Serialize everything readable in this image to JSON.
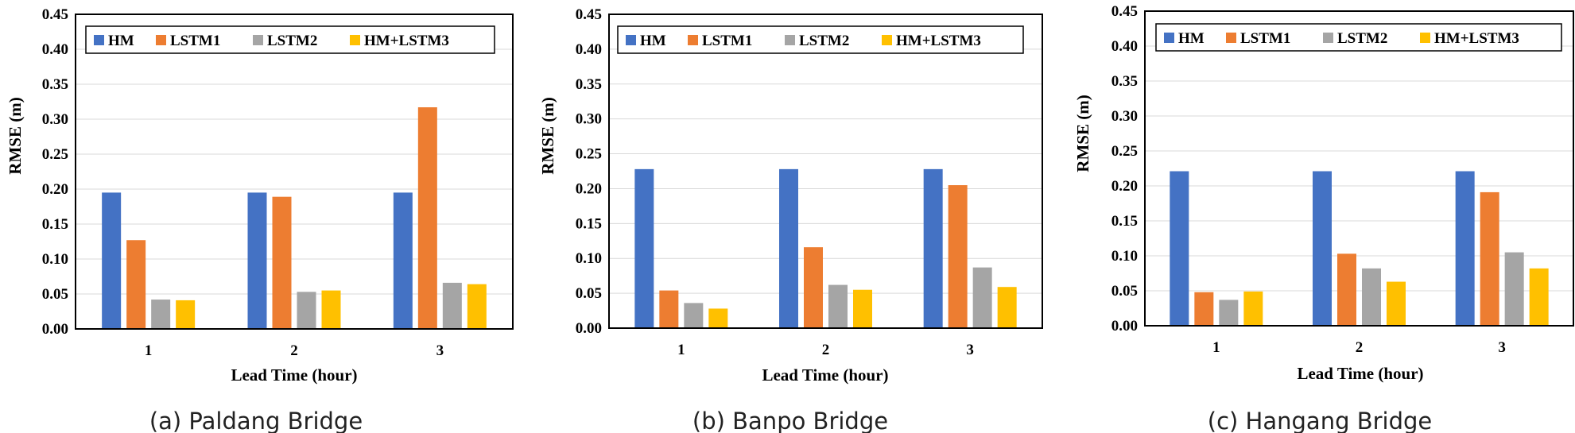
{
  "chart_data": [
    {
      "type": "bar",
      "caption": "(a) Paldang Bridge",
      "categories": [
        "1",
        "2",
        "3"
      ],
      "xlabel": "Lead Time (hour)",
      "ylabel": "RMSE (m)",
      "ylim": [
        0,
        0.45
      ],
      "yticks": [
        "0.00",
        "0.05",
        "0.10",
        "0.15",
        "0.20",
        "0.25",
        "0.30",
        "0.35",
        "0.40",
        "0.45"
      ],
      "grid": true,
      "legend_position": "top",
      "series": [
        {
          "name": "HM",
          "color": "#4472C4",
          "values": [
            0.195,
            0.195,
            0.195
          ]
        },
        {
          "name": "LSTM1",
          "color": "#ED7D31",
          "values": [
            0.127,
            0.189,
            0.317
          ]
        },
        {
          "name": "LSTM2",
          "color": "#A5A5A5",
          "values": [
            0.042,
            0.053,
            0.066
          ]
        },
        {
          "name": "HM+LSTM3",
          "color": "#FFC000",
          "values": [
            0.041,
            0.055,
            0.064
          ]
        }
      ]
    },
    {
      "type": "bar",
      "caption": "(b) Banpo Bridge",
      "categories": [
        "1",
        "2",
        "3"
      ],
      "xlabel": "Lead Time (hour)",
      "ylabel": "RMSE (m)",
      "ylim": [
        0,
        0.45
      ],
      "yticks": [
        "0.00",
        "0.05",
        "0.10",
        "0.15",
        "0.20",
        "0.25",
        "0.30",
        "0.35",
        "0.40",
        "0.45"
      ],
      "grid": true,
      "legend_position": "top",
      "series": [
        {
          "name": "HM",
          "color": "#4472C4",
          "values": [
            0.228,
            0.228,
            0.228
          ]
        },
        {
          "name": "LSTM1",
          "color": "#ED7D31",
          "values": [
            0.054,
            0.116,
            0.205
          ]
        },
        {
          "name": "LSTM2",
          "color": "#A5A5A5",
          "values": [
            0.036,
            0.062,
            0.087
          ]
        },
        {
          "name": "HM+LSTM3",
          "color": "#FFC000",
          "values": [
            0.028,
            0.055,
            0.059
          ]
        }
      ]
    },
    {
      "type": "bar",
      "caption": "(c) Hangang Bridge",
      "categories": [
        "1",
        "2",
        "3"
      ],
      "xlabel": "Lead Time (hour)",
      "ylabel": "RMSE (m)",
      "ylim": [
        0,
        0.45
      ],
      "yticks": [
        "0.00",
        "0.05",
        "0.10",
        "0.15",
        "0.20",
        "0.25",
        "0.30",
        "0.35",
        "0.40",
        "0.45"
      ],
      "grid": true,
      "legend_position": "top",
      "series": [
        {
          "name": "HM",
          "color": "#4472C4",
          "values": [
            0.221,
            0.221,
            0.221
          ]
        },
        {
          "name": "LSTM1",
          "color": "#ED7D31",
          "values": [
            0.048,
            0.103,
            0.191
          ]
        },
        {
          "name": "LSTM2",
          "color": "#A5A5A5",
          "values": [
            0.037,
            0.082,
            0.105
          ]
        },
        {
          "name": "HM+LSTM3",
          "color": "#FFC000",
          "values": [
            0.049,
            0.063,
            0.082
          ]
        }
      ]
    }
  ]
}
